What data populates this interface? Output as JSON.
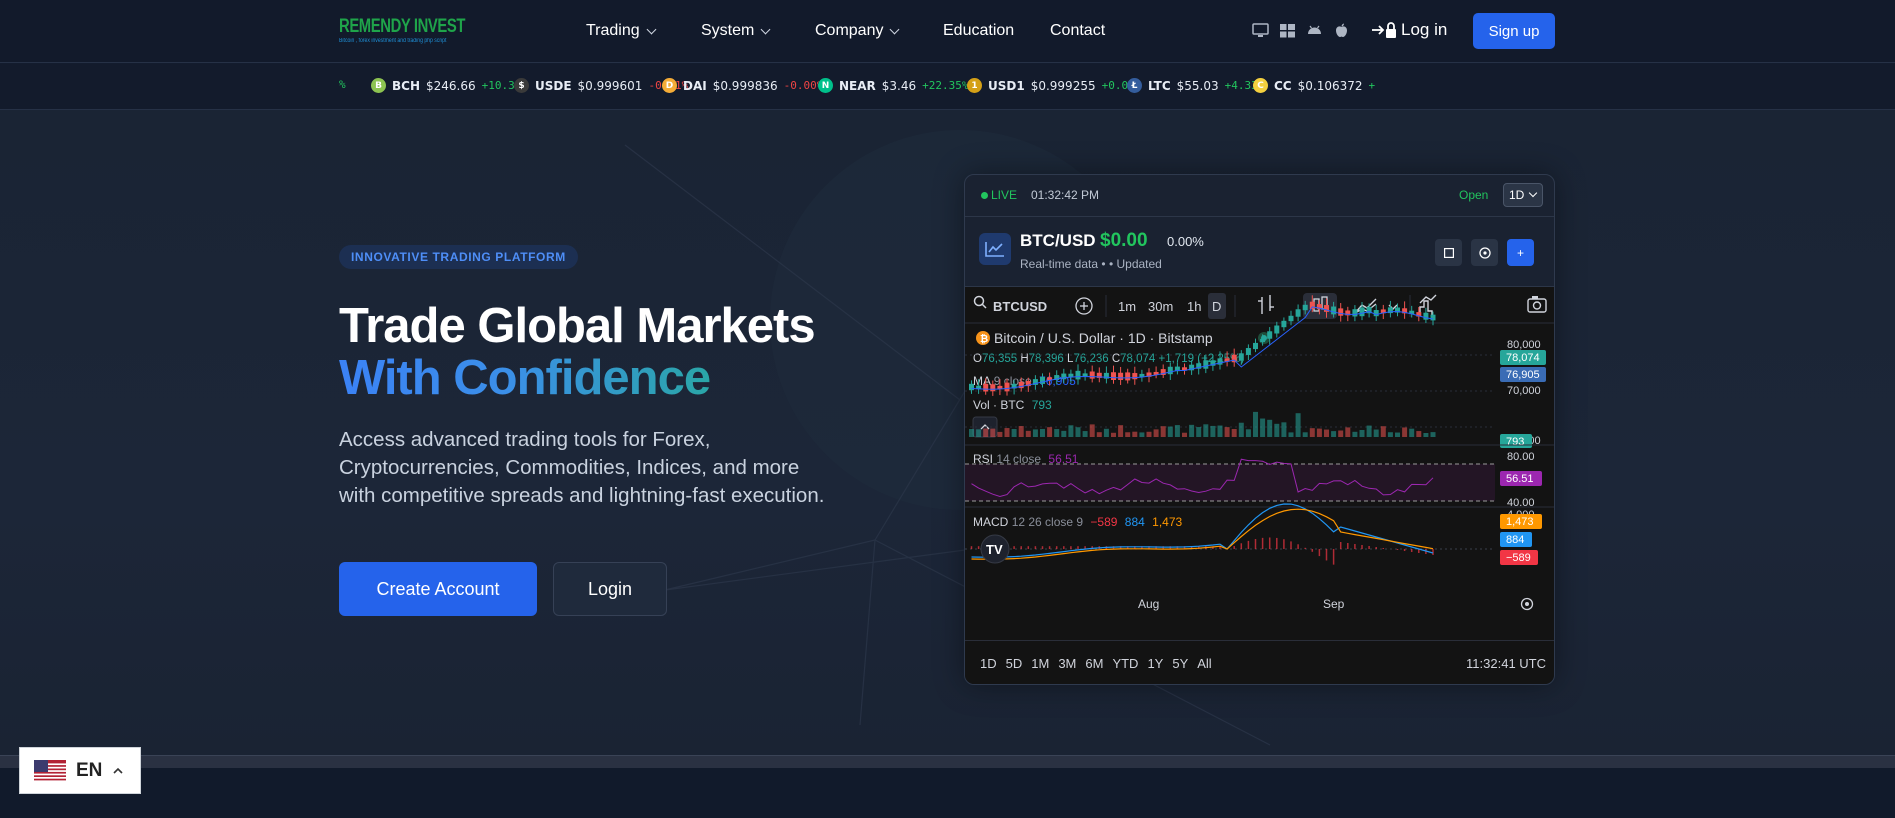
{
  "brand": {
    "logo_title": "REMENDY INVEST",
    "logo_tagline": "Bitcoin , forex investment and trading php script"
  },
  "nav": {
    "items": [
      {
        "label": "Trading",
        "dropdown": true
      },
      {
        "label": "System",
        "dropdown": true
      },
      {
        "label": "Company",
        "dropdown": true
      },
      {
        "label": "Education",
        "dropdown": false
      },
      {
        "label": "Contact",
        "dropdown": false
      }
    ],
    "platform_icons": [
      "desktop-icon",
      "windows-icon",
      "android-icon",
      "apple-icon"
    ],
    "login_label": "Log in",
    "signup_label": "Sign up"
  },
  "ticker": [
    {
      "symbol": "",
      "price": "",
      "change": "%",
      "dir": "up",
      "color": "#22c55e",
      "letter": ""
    },
    {
      "symbol": "BCH",
      "price": "$246.66",
      "change": "+10.31%",
      "dir": "up",
      "color": "#8dc351",
      "letter": "B"
    },
    {
      "symbol": "USDE",
      "price": "$0.999601",
      "change": "-0.01%",
      "dir": "down",
      "color": "#3a3a3a",
      "letter": "$"
    },
    {
      "symbol": "DAI",
      "price": "$0.999836",
      "change": "-0.00%",
      "dir": "down",
      "color": "#f5ac37",
      "letter": "D"
    },
    {
      "symbol": "NEAR",
      "price": "$3.46",
      "change": "+22.35%",
      "dir": "up",
      "color": "#00c08b",
      "letter": "N"
    },
    {
      "symbol": "USD1",
      "price": "$0.999255",
      "change": "+0.02%",
      "dir": "up",
      "color": "#d4a017",
      "letter": "1"
    },
    {
      "symbol": "LTC",
      "price": "$55.03",
      "change": "+4.33%",
      "dir": "up",
      "color": "#345d9d",
      "letter": "Ł"
    },
    {
      "symbol": "CC",
      "price": "$0.106372",
      "change": "+",
      "dir": "up",
      "color": "#f4d03f",
      "letter": "C"
    }
  ],
  "hero": {
    "badge": "INNOVATIVE TRADING PLATFORM",
    "title_line1": "Trade Global Markets",
    "title_line2": "With Confidence",
    "subtitle": "Access advanced trading tools for Forex, Cryptocurrencies, Commodities, Indices, and more with competitive spreads and lightning-fast execution.",
    "create_account": "Create Account",
    "login": "Login"
  },
  "widget": {
    "live_label": "LIVE",
    "time": "01:32:42 PM",
    "status": "Open",
    "timeframe": "1D",
    "pair": "BTC/USD",
    "price": "$0.00",
    "change": "0.00%",
    "meta_realtime": "Real-time data",
    "meta_updated": "Updated",
    "range_buttons": [
      "1D",
      "5D",
      "1M",
      "3M",
      "6M",
      "YTD",
      "1Y",
      "5Y",
      "All"
    ],
    "utc_time": "11:32:41 UTC"
  },
  "tv": {
    "symbol": "BTCUSD",
    "intervals": [
      "1m",
      "30m",
      "1h",
      "D"
    ],
    "title": "Bitcoin / U.S. Dollar · 1D · Bitstamp",
    "o_label": "O",
    "o_val": "76,355",
    "h_label": "H",
    "h_val": "78,396",
    "l_label": "L",
    "l_val": "76,236",
    "c_label": "C",
    "c_val": "78,074",
    "chg_val": "+1,719 (+2.25%)",
    "ma_label": "MA",
    "ma_params": "9 close",
    "ma_val": "76,905",
    "vol_label": "Vol · BTC",
    "vol_val": "793",
    "rsi_label": "RSI",
    "rsi_params": "14 close",
    "rsi_val": "56.51",
    "macd_label": "MACD",
    "macd_params": "12 26 close 9",
    "macd_v1": "−589",
    "macd_v2": "884",
    "macd_v3": "1,473",
    "price_axis": [
      "80,000",
      "70,000",
      "60,000"
    ],
    "price_tag": "78,074",
    "ma_tag": "76,905",
    "vol_tag": "793",
    "rsi_axis": [
      "80.00",
      "40.00"
    ],
    "rsi_tag": "56.51",
    "macd_axis": "4,000",
    "macd_tags": [
      "1,473",
      "884",
      "−589"
    ],
    "x_labels": [
      "Aug",
      "Sep"
    ],
    "colors": {
      "up": "#26a69a",
      "down": "#ef5350",
      "rsi": "#9c27b0",
      "macd": "#2196f3",
      "signal": "#ff9800"
    }
  },
  "language": {
    "code": "EN"
  }
}
